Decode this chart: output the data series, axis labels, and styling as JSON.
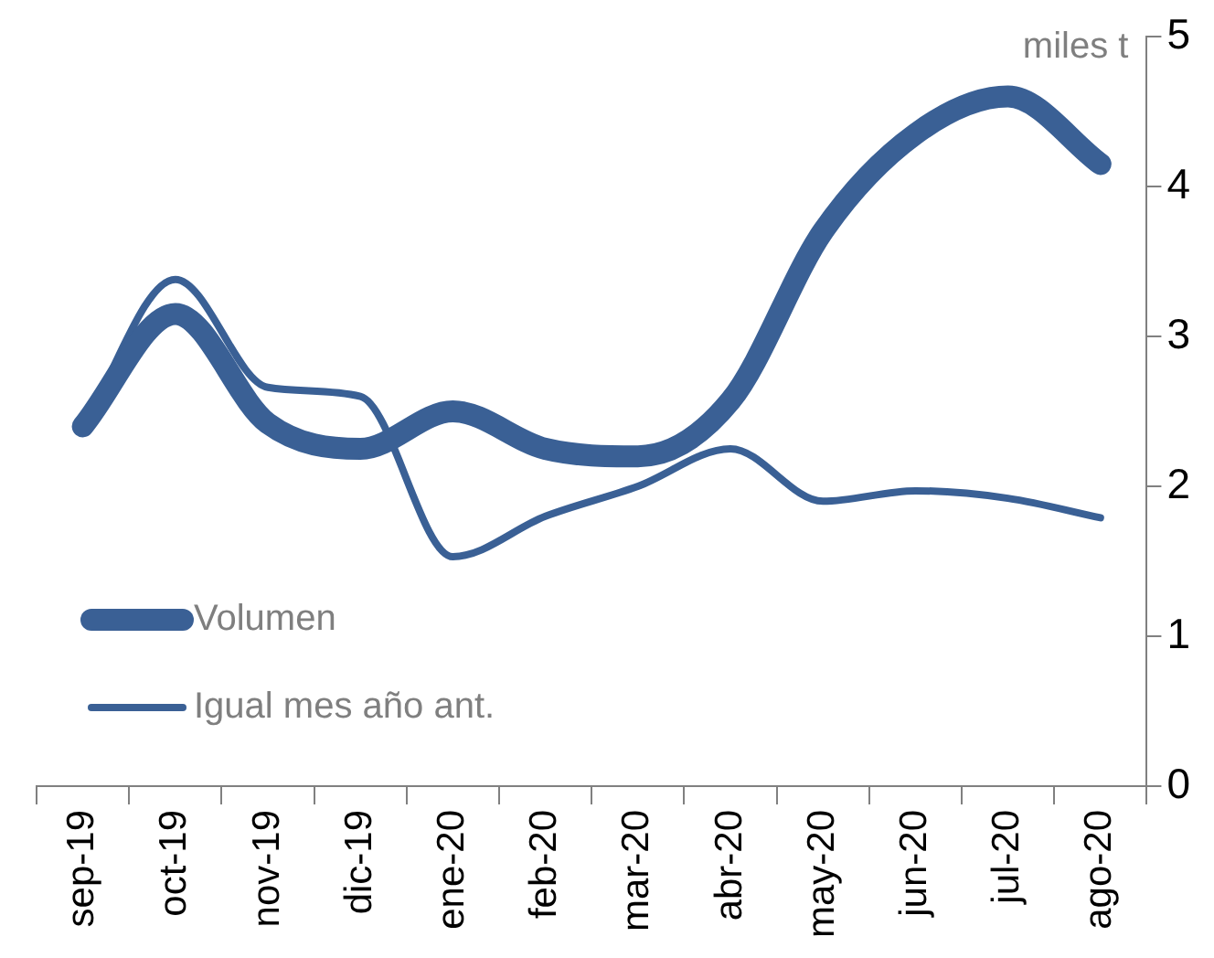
{
  "chart_data": {
    "type": "line",
    "ylabel": "miles t",
    "categories": [
      "sep-19",
      "oct-19",
      "nov-19",
      "dic-19",
      "ene-20",
      "feb-20",
      "mar-20",
      "abr-20",
      "may-20",
      "jun-20",
      "jul-20",
      "ago-20"
    ],
    "series": [
      {
        "name": "Volumen",
        "color": "#3a6095",
        "values": [
          2.4,
          3.15,
          2.42,
          2.25,
          2.5,
          2.25,
          2.2,
          2.57,
          3.7,
          4.35,
          4.6,
          4.15
        ]
      },
      {
        "name": "Igual mes año ant.",
        "color": "#3a6095",
        "values": [
          2.4,
          3.38,
          2.66,
          2.6,
          1.53,
          1.8,
          2.0,
          2.25,
          1.9,
          1.97,
          1.92,
          1.79
        ]
      }
    ],
    "ylim": [
      0,
      5
    ],
    "yticks": [
      0,
      1,
      2,
      3,
      4,
      5
    ],
    "grid": false,
    "legend": "bottom left",
    "marker": "none",
    "line_style": "solid"
  }
}
